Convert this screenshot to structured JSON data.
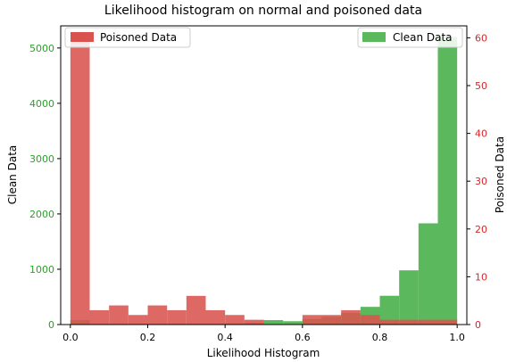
{
  "chart_data": {
    "type": "bar",
    "title": "Likelihood histogram on normal and poisoned data",
    "xlabel": "Likelihood Histogram",
    "ylabel_left": "Clean Data",
    "ylabel_right": "Poisoned Data",
    "xlim": [
      -0.025,
      1.025
    ],
    "ylim_left": [
      0,
      5400
    ],
    "ylim_right": [
      0,
      62.5
    ],
    "x_ticks": [
      "0.0",
      "0.2",
      "0.4",
      "0.6",
      "0.8",
      "1.0"
    ],
    "y_left_ticks": [
      "0",
      "1000",
      "2000",
      "3000",
      "4000",
      "5000"
    ],
    "y_right_ticks": [
      "0",
      "10",
      "20",
      "30",
      "40",
      "50",
      "60"
    ],
    "bin_edges": [
      0.0,
      0.05,
      0.1,
      0.15,
      0.2,
      0.25,
      0.3,
      0.35,
      0.4,
      0.45,
      0.5,
      0.55,
      0.6,
      0.65,
      0.7,
      0.75,
      0.8,
      0.85,
      0.9,
      0.95,
      1.0
    ],
    "series": [
      {
        "name": "Clean Data",
        "axis": "left",
        "color": "#5cb85c",
        "values": [
          80,
          5,
          5,
          5,
          5,
          10,
          10,
          10,
          20,
          30,
          80,
          60,
          100,
          140,
          210,
          320,
          520,
          980,
          1830,
          5200
        ]
      },
      {
        "name": "Poisoned Data",
        "axis": "right",
        "color": "#d9534f",
        "values": [
          60,
          3,
          4,
          2,
          4,
          3,
          6,
          3,
          2,
          1,
          0,
          0,
          2,
          2,
          3,
          2,
          1,
          1,
          1,
          1
        ]
      }
    ],
    "legend_left": "top-left",
    "legend_right": "top-right",
    "grid": false
  }
}
